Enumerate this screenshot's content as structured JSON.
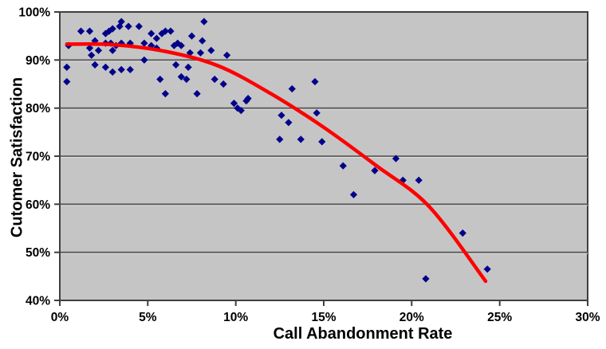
{
  "chart_data": {
    "type": "scatter",
    "title": "",
    "xlabel": "Call Abandonment Rate",
    "ylabel": "Cutomer Satisfaction",
    "xlim": [
      0,
      30
    ],
    "ylim": [
      40,
      100
    ],
    "x_tick_values": [
      0,
      5,
      10,
      15,
      20,
      25,
      30
    ],
    "x_tick_labels": [
      "0%",
      "5%",
      "10%",
      "15%",
      "20%",
      "25%",
      "30%"
    ],
    "y_tick_values": [
      40,
      50,
      60,
      70,
      80,
      90,
      100
    ],
    "y_tick_labels": [
      "40%",
      "50%",
      "60%",
      "70%",
      "80%",
      "90%",
      "100%"
    ],
    "grid": "horizontal-only",
    "legend": "none",
    "plot_bg": "#C5C5C5",
    "grid_color": "#5C5C5C",
    "axis_color": "#3F3F3F",
    "series": [
      {
        "name": "customer-satisfaction",
        "type": "scatter",
        "marker": "diamond",
        "color": "#00008B",
        "points": [
          [
            0.4,
            88.5
          ],
          [
            0.4,
            85.5
          ],
          [
            0.5,
            93
          ],
          [
            1.2,
            96
          ],
          [
            1.7,
            96
          ],
          [
            1.7,
            92.5
          ],
          [
            1.8,
            91
          ],
          [
            2.0,
            94
          ],
          [
            2.0,
            89
          ],
          [
            2.2,
            92
          ],
          [
            2.6,
            95.5
          ],
          [
            2.6,
            93.5
          ],
          [
            2.6,
            88.5
          ],
          [
            2.8,
            96
          ],
          [
            2.9,
            93.5
          ],
          [
            3.0,
            96.5
          ],
          [
            3.0,
            92
          ],
          [
            3.0,
            87.5
          ],
          [
            3.2,
            93
          ],
          [
            3.4,
            97
          ],
          [
            3.5,
            98
          ],
          [
            3.5,
            93.5
          ],
          [
            3.5,
            88
          ],
          [
            3.9,
            97
          ],
          [
            4.0,
            93.5
          ],
          [
            4.0,
            88
          ],
          [
            4.5,
            97
          ],
          [
            4.8,
            93.5
          ],
          [
            4.8,
            90
          ],
          [
            5.2,
            95.5
          ],
          [
            5.2,
            93
          ],
          [
            5.5,
            94.5
          ],
          [
            5.5,
            92.5
          ],
          [
            5.7,
            86
          ],
          [
            5.8,
            95.5
          ],
          [
            6.0,
            96
          ],
          [
            6.0,
            83
          ],
          [
            6.3,
            96
          ],
          [
            6.5,
            93
          ],
          [
            6.6,
            89
          ],
          [
            6.7,
            93.5
          ],
          [
            6.9,
            93
          ],
          [
            6.9,
            86.5
          ],
          [
            7.2,
            86
          ],
          [
            7.3,
            88.5
          ],
          [
            7.4,
            91.5
          ],
          [
            7.5,
            95
          ],
          [
            7.8,
            83
          ],
          [
            8.0,
            91.5
          ],
          [
            8.1,
            94
          ],
          [
            8.2,
            98
          ],
          [
            8.6,
            92
          ],
          [
            8.8,
            86
          ],
          [
            9.3,
            85
          ],
          [
            9.5,
            91
          ],
          [
            9.9,
            81
          ],
          [
            10.1,
            80
          ],
          [
            10.3,
            79.5
          ],
          [
            10.6,
            81.5
          ],
          [
            10.7,
            82
          ],
          [
            12.5,
            73.5
          ],
          [
            12.6,
            78.5
          ],
          [
            13.0,
            77
          ],
          [
            13.2,
            84
          ],
          [
            13.7,
            73.5
          ],
          [
            14.5,
            85.5
          ],
          [
            14.6,
            79
          ],
          [
            14.9,
            73
          ],
          [
            16.1,
            68
          ],
          [
            16.7,
            62
          ],
          [
            17.9,
            67
          ],
          [
            19.1,
            69.5
          ],
          [
            19.5,
            65
          ],
          [
            20.4,
            65
          ],
          [
            20.8,
            44.5
          ],
          [
            22.9,
            54
          ],
          [
            24.3,
            46.5
          ]
        ]
      },
      {
        "name": "polynomial-trend-line",
        "type": "line",
        "color": "#FF0000",
        "stroke_width": 4.5,
        "points": [
          [
            0.4,
            93.3
          ],
          [
            3,
            93.2
          ],
          [
            6,
            91.8
          ],
          [
            9,
            88.8
          ],
          [
            12,
            83
          ],
          [
            15,
            76
          ],
          [
            18,
            68
          ],
          [
            21,
            59.5
          ],
          [
            24.2,
            44
          ]
        ]
      }
    ]
  }
}
